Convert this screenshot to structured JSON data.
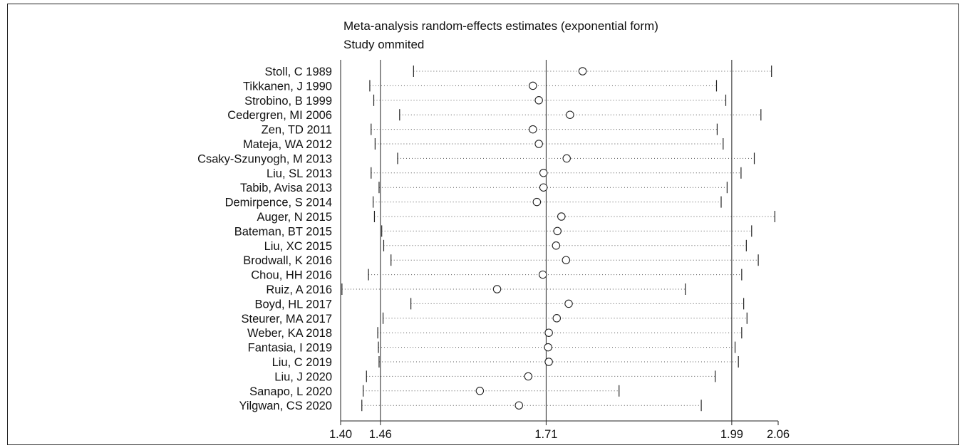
{
  "chart_data": {
    "type": "forest",
    "title": "Meta-analysis random-effects estimates (exponential form)",
    "subtitle": "Study ommited",
    "x_ticks": [
      "1.40",
      "1.46",
      "1.71",
      "1.99",
      "2.06"
    ],
    "x_tick_values": [
      1.4,
      1.46,
      1.71,
      1.99,
      2.06
    ],
    "reference_lines": [
      1.46,
      1.71,
      1.99
    ],
    "xlim": [
      1.4,
      2.06
    ],
    "studies": [
      {
        "label": "Stoll, C 1989",
        "estimate": 1.765,
        "lower": 1.51,
        "upper": 2.05
      },
      {
        "label": "Tikkanen, J 1990",
        "estimate": 1.69,
        "lower": 1.444,
        "upper": 1.967
      },
      {
        "label": "Strobino, B 1999",
        "estimate": 1.699,
        "lower": 1.45,
        "upper": 1.981
      },
      {
        "label": "Cedergren, MI 2006",
        "estimate": 1.746,
        "lower": 1.489,
        "upper": 2.034
      },
      {
        "label": "Zen, TD 2011",
        "estimate": 1.69,
        "lower": 1.446,
        "upper": 1.968
      },
      {
        "label": "Mateja, WA 2012",
        "estimate": 1.699,
        "lower": 1.452,
        "upper": 1.977
      },
      {
        "label": "Csaky-Szunyogh, M 2013",
        "estimate": 1.741,
        "lower": 1.486,
        "upper": 2.024
      },
      {
        "label": "Liu, SL 2013",
        "estimate": 1.706,
        "lower": 1.446,
        "upper": 2.004
      },
      {
        "label": "Tabib, Avisa 2013",
        "estimate": 1.706,
        "lower": 1.458,
        "upper": 1.983
      },
      {
        "label": "Demirpence, S 2014",
        "estimate": 1.696,
        "lower": 1.449,
        "upper": 1.974
      },
      {
        "label": "Auger, N 2015",
        "estimate": 1.733,
        "lower": 1.451,
        "upper": 2.055
      },
      {
        "label": "Bateman, BT 2015",
        "estimate": 1.727,
        "lower": 1.462,
        "upper": 2.02
      },
      {
        "label": "Liu, XC 2015",
        "estimate": 1.725,
        "lower": 1.465,
        "upper": 2.012
      },
      {
        "label": "Brodwall, K 2016",
        "estimate": 1.74,
        "lower": 1.476,
        "upper": 2.03
      },
      {
        "label": "Chou, HH 2016",
        "estimate": 1.705,
        "lower": 1.442,
        "upper": 2.005
      },
      {
        "label": "Ruiz, A 2016",
        "estimate": 1.636,
        "lower": 1.402,
        "upper": 1.92
      },
      {
        "label": "Boyd, HL 2017",
        "estimate": 1.744,
        "lower": 1.506,
        "upper": 2.008
      },
      {
        "label": "Steurer, MA 2017",
        "estimate": 1.726,
        "lower": 1.464,
        "upper": 2.013
      },
      {
        "label": "Weber, KA 2018",
        "estimate": 1.714,
        "lower": 1.456,
        "upper": 2.005
      },
      {
        "label": "Fantasia, I 2019",
        "estimate": 1.713,
        "lower": 1.457,
        "upper": 1.995
      },
      {
        "label": "Liu, C 2019",
        "estimate": 1.714,
        "lower": 1.458,
        "upper": 2.0
      },
      {
        "label": "Liu, J 2020",
        "estimate": 1.683,
        "lower": 1.439,
        "upper": 1.965
      },
      {
        "label": "Sanapo, L 2020",
        "estimate": 1.61,
        "lower": 1.434,
        "upper": 1.82
      },
      {
        "label": "Yilgwan, CS 2020",
        "estimate": 1.669,
        "lower": 1.432,
        "upper": 1.944
      }
    ]
  }
}
